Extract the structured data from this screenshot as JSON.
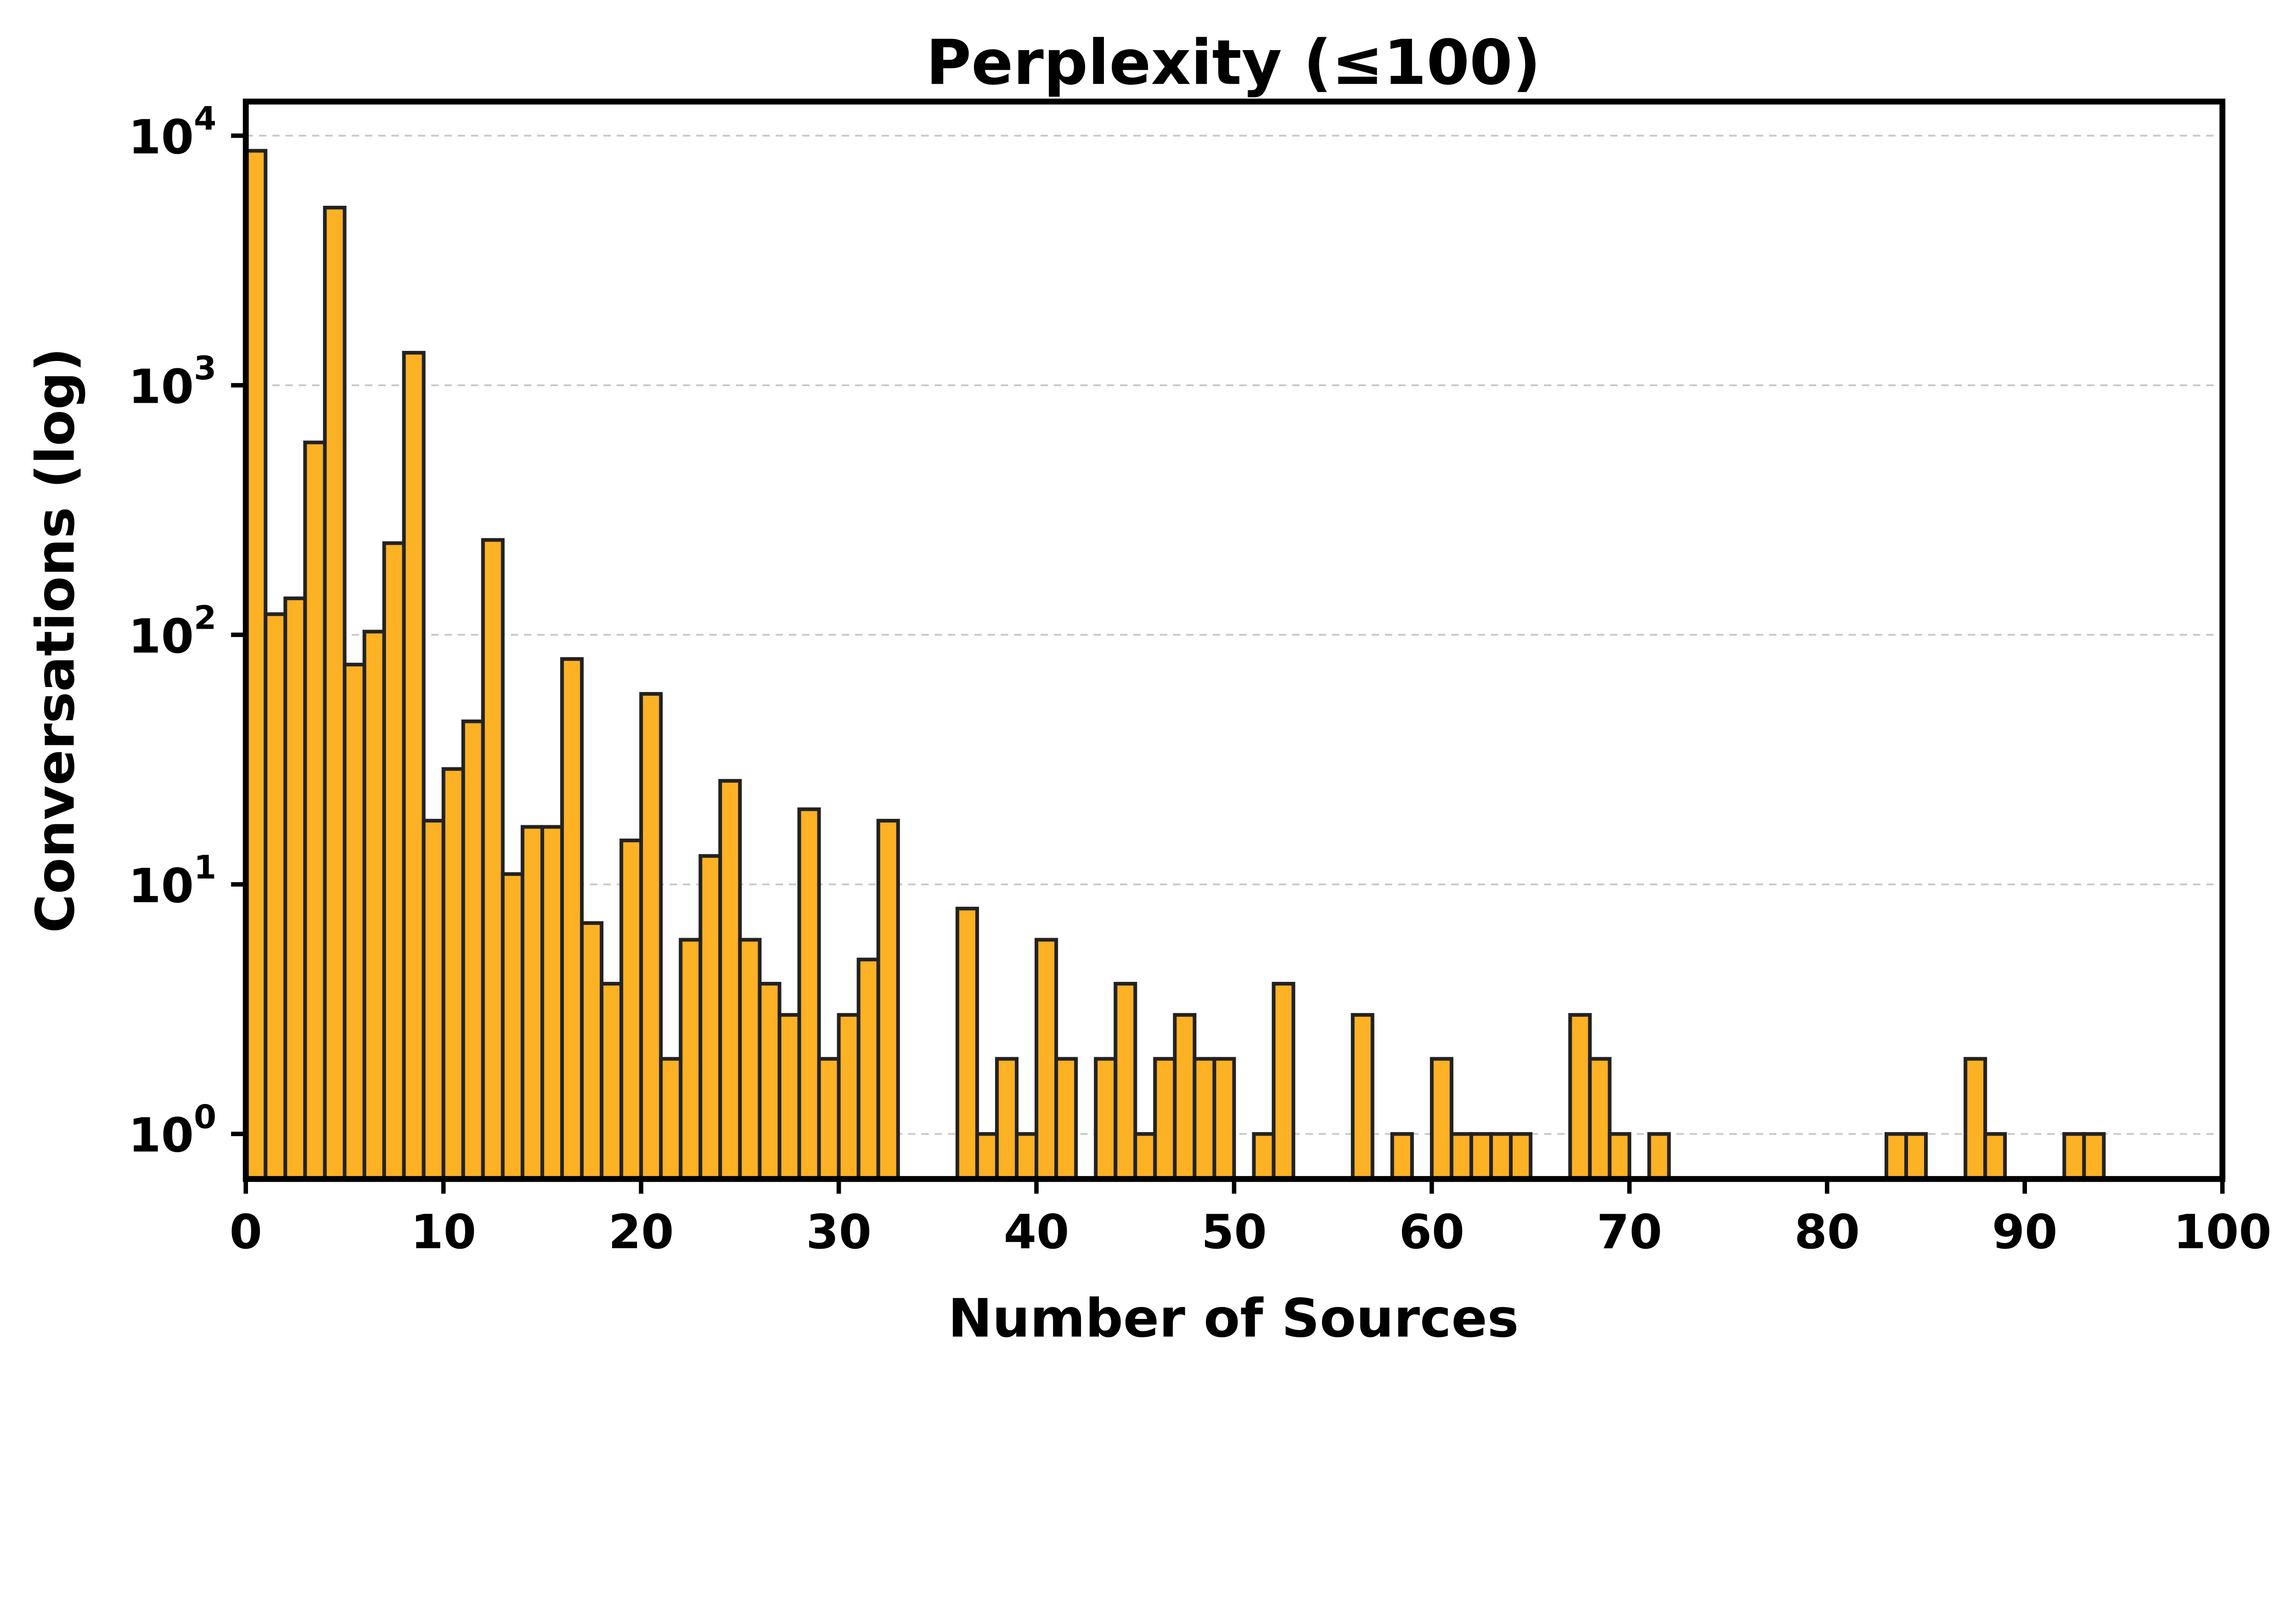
{
  "chart_data": {
    "type": "bar",
    "title": "Perplexity (≤100)",
    "xlabel": "Number of Sources",
    "ylabel": "Conversations (log)",
    "xlim": [
      0,
      100
    ],
    "ylim": [
      0.66,
      13700
    ],
    "yscale": "log",
    "bin_width": 1,
    "grid": "y-major-dashed",
    "bar_color": "#FDB124",
    "edge_color": "#222222",
    "x_ticks": [
      "0",
      "10",
      "20",
      "30",
      "40",
      "50",
      "60",
      "70",
      "80",
      "90",
      "100"
    ],
    "y_ticks": [
      {
        "base": "10",
        "exp": "0"
      },
      {
        "base": "10",
        "exp": "1"
      },
      {
        "base": "10",
        "exp": "2"
      },
      {
        "base": "10",
        "exp": "3"
      },
      {
        "base": "10",
        "exp": "4"
      }
    ],
    "bins": [
      0,
      1,
      2,
      3,
      4,
      5,
      6,
      7,
      8,
      9,
      10,
      11,
      12,
      13,
      14,
      15,
      16,
      17,
      18,
      19,
      20,
      21,
      22,
      23,
      24,
      25,
      26,
      27,
      28,
      29,
      30,
      31,
      32,
      36,
      37,
      38,
      39,
      40,
      41,
      43,
      44,
      45,
      46,
      47,
      48,
      49,
      51,
      52,
      56,
      58,
      60,
      61,
      62,
      63,
      64,
      67,
      68,
      69,
      71,
      83,
      84,
      87,
      88,
      92,
      93
    ],
    "values": [
      8700,
      121,
      140,
      590,
      5150,
      76,
      103,
      233,
      1350,
      18,
      29,
      45,
      240,
      11,
      17,
      17,
      80,
      7,
      4,
      15,
      58,
      2,
      6,
      13,
      26,
      6,
      4,
      3,
      20,
      2,
      3,
      5,
      18,
      8,
      1,
      2,
      1,
      6,
      2,
      2,
      4,
      1,
      2,
      3,
      2,
      2,
      1,
      4,
      3,
      1,
      2,
      1,
      1,
      1,
      1,
      3,
      2,
      1,
      1,
      1,
      1,
      2,
      1,
      1,
      1
    ]
  }
}
